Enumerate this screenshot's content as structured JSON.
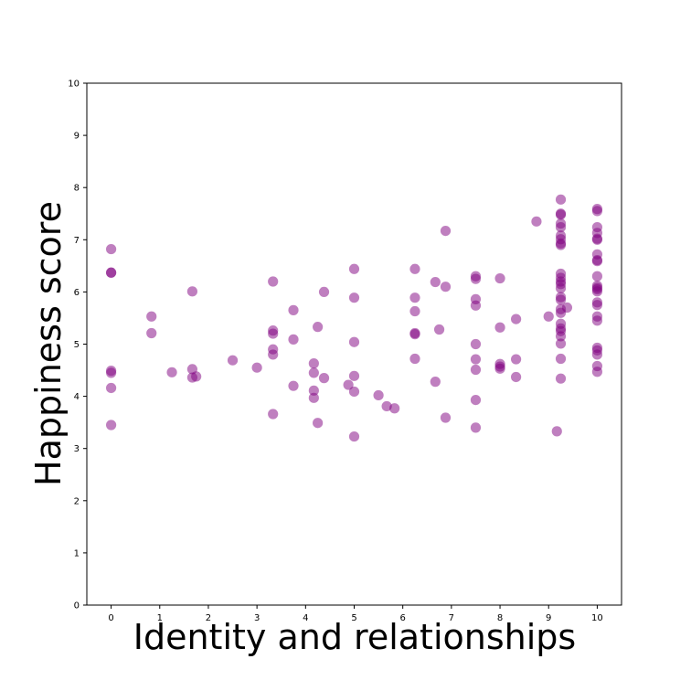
{
  "chart_data": {
    "type": "scatter",
    "title": "",
    "xlabel": "Identity and relationships",
    "ylabel": "Happiness score",
    "xlim": [
      -0.5,
      10.5
    ],
    "ylim": [
      0,
      10
    ],
    "xticks": [
      0,
      1,
      2,
      3,
      4,
      5,
      6,
      7,
      8,
      9,
      10
    ],
    "yticks": [
      0,
      1,
      2,
      3,
      4,
      5,
      6,
      7,
      8,
      9,
      10
    ],
    "grid": false,
    "legend": "none",
    "marker_color": "#800080",
    "marker_alpha": 0.5,
    "series": [
      {
        "points": [
          [
            0,
            6.82
          ],
          [
            0,
            6.37
          ],
          [
            0,
            6.37
          ],
          [
            0,
            4.49
          ],
          [
            0,
            4.45
          ],
          [
            0,
            4.16
          ],
          [
            0,
            3.45
          ],
          [
            0.83,
            5.53
          ],
          [
            0.83,
            5.21
          ],
          [
            1.25,
            4.46
          ],
          [
            1.67,
            6.01
          ],
          [
            1.67,
            4.52
          ],
          [
            1.67,
            4.36
          ],
          [
            1.75,
            4.38
          ],
          [
            2.5,
            4.69
          ],
          [
            3.0,
            4.55
          ],
          [
            3.33,
            6.2
          ],
          [
            3.33,
            5.26
          ],
          [
            3.33,
            5.2
          ],
          [
            3.33,
            4.9
          ],
          [
            3.33,
            4.8
          ],
          [
            3.33,
            3.66
          ],
          [
            3.75,
            5.65
          ],
          [
            3.75,
            5.09
          ],
          [
            3.75,
            4.2
          ],
          [
            4.17,
            4.63
          ],
          [
            4.17,
            4.45
          ],
          [
            4.17,
            4.11
          ],
          [
            4.17,
            3.97
          ],
          [
            4.25,
            5.33
          ],
          [
            4.25,
            3.49
          ],
          [
            4.38,
            6.0
          ],
          [
            4.38,
            4.35
          ],
          [
            4.88,
            4.22
          ],
          [
            5.0,
            6.44
          ],
          [
            5.0,
            5.89
          ],
          [
            5.0,
            5.04
          ],
          [
            5.0,
            4.39
          ],
          [
            5.0,
            4.09
          ],
          [
            5.0,
            3.23
          ],
          [
            5.5,
            4.02
          ],
          [
            5.67,
            3.81
          ],
          [
            5.83,
            3.77
          ],
          [
            6.25,
            6.44
          ],
          [
            6.25,
            5.89
          ],
          [
            6.25,
            5.63
          ],
          [
            6.25,
            5.21
          ],
          [
            6.25,
            5.19
          ],
          [
            6.25,
            4.72
          ],
          [
            6.67,
            6.19
          ],
          [
            6.67,
            4.28
          ],
          [
            6.75,
            5.28
          ],
          [
            6.88,
            7.17
          ],
          [
            6.88,
            6.1
          ],
          [
            6.88,
            3.59
          ],
          [
            7.5,
            6.3
          ],
          [
            7.5,
            6.25
          ],
          [
            7.5,
            5.86
          ],
          [
            7.5,
            5.74
          ],
          [
            7.5,
            5.0
          ],
          [
            7.5,
            4.71
          ],
          [
            7.5,
            4.51
          ],
          [
            7.5,
            3.93
          ],
          [
            7.5,
            3.4
          ],
          [
            8.0,
            6.26
          ],
          [
            8.0,
            5.32
          ],
          [
            8.0,
            4.62
          ],
          [
            8.0,
            4.57
          ],
          [
            8.0,
            4.53
          ],
          [
            8.33,
            5.48
          ],
          [
            8.33,
            4.71
          ],
          [
            8.33,
            4.37
          ],
          [
            8.75,
            7.35
          ],
          [
            9.0,
            5.53
          ],
          [
            9.17,
            3.33
          ],
          [
            9.25,
            7.77
          ],
          [
            9.25,
            7.5
          ],
          [
            9.25,
            7.48
          ],
          [
            9.25,
            7.31
          ],
          [
            9.25,
            7.24
          ],
          [
            9.25,
            7.08
          ],
          [
            9.25,
            7.01
          ],
          [
            9.25,
            6.93
          ],
          [
            9.25,
            6.9
          ],
          [
            9.25,
            6.35
          ],
          [
            9.25,
            6.27
          ],
          [
            9.25,
            6.2
          ],
          [
            9.25,
            6.15
          ],
          [
            9.25,
            6.07
          ],
          [
            9.25,
            5.9
          ],
          [
            9.25,
            5.85
          ],
          [
            9.25,
            5.67
          ],
          [
            9.25,
            5.6
          ],
          [
            9.25,
            5.39
          ],
          [
            9.25,
            5.3
          ],
          [
            9.25,
            5.25
          ],
          [
            9.25,
            5.15
          ],
          [
            9.25,
            5.01
          ],
          [
            9.25,
            4.72
          ],
          [
            9.25,
            4.34
          ],
          [
            9.38,
            5.7
          ],
          [
            10,
            7.59
          ],
          [
            10,
            7.55
          ],
          [
            10,
            7.24
          ],
          [
            10,
            7.13
          ],
          [
            10,
            7.02
          ],
          [
            10,
            7.0
          ],
          [
            10,
            6.72
          ],
          [
            10,
            6.61
          ],
          [
            10,
            6.59
          ],
          [
            10,
            6.3
          ],
          [
            10,
            6.12
          ],
          [
            10,
            6.08
          ],
          [
            10,
            6.05
          ],
          [
            10,
            6.01
          ],
          [
            10,
            5.8
          ],
          [
            10,
            5.75
          ],
          [
            10,
            5.53
          ],
          [
            10,
            5.45
          ],
          [
            10,
            4.93
          ],
          [
            10,
            4.88
          ],
          [
            10,
            4.8
          ],
          [
            10,
            4.58
          ],
          [
            10,
            4.47
          ]
        ]
      }
    ]
  }
}
